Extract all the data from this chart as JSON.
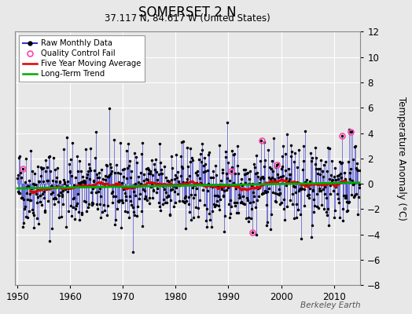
{
  "title": "SOMERSET 2 N",
  "subtitle": "37.117 N, 84.617 W (United States)",
  "ylabel": "Temperature Anomaly (°C)",
  "watermark": "Berkeley Earth",
  "ylim": [
    -8,
    12
  ],
  "xlim": [
    1949.5,
    2015
  ],
  "xticks": [
    1950,
    1960,
    1970,
    1980,
    1990,
    2000,
    2010
  ],
  "yticks": [
    -8,
    -6,
    -4,
    -2,
    0,
    2,
    4,
    6,
    8,
    10,
    12
  ],
  "bg_color": "#e8e8e8",
  "raw_color": "#3333cc",
  "dot_color": "#000000",
  "qc_color": "#ff44aa",
  "moving_avg_color": "#dd0000",
  "trend_color": "#00aa00",
  "trend_slope": 0.007,
  "trend_intercept": -0.15,
  "seed": 42,
  "figsize": [
    5.24,
    4.0
  ],
  "dpi": 100
}
